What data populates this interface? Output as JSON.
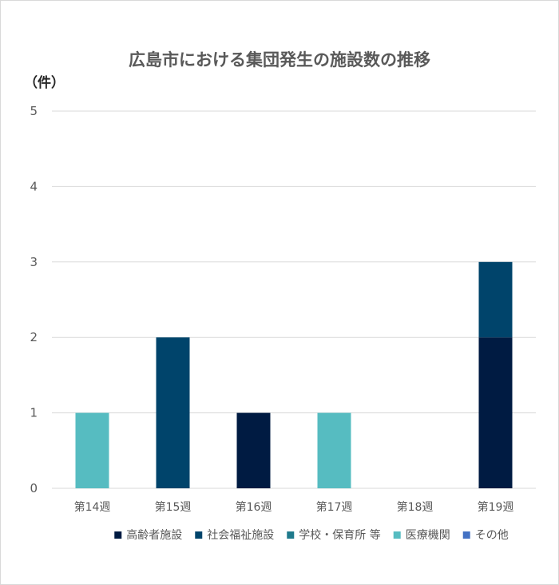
{
  "chart_data": {
    "type": "bar",
    "stacked": true,
    "title": "広島市における集団発生の施設数の推移",
    "unit_label": "（件）",
    "categories": [
      "第14週",
      "第15週",
      "第16週",
      "第17週",
      "第18週",
      "第19週"
    ],
    "ylim": [
      0,
      5
    ],
    "yticks": [
      0,
      1,
      2,
      3,
      4,
      5
    ],
    "grid": true,
    "legend_position": "bottom",
    "series": [
      {
        "name": "高齢者施設",
        "color": "#001b42",
        "values": [
          0,
          0,
          1,
          0,
          0,
          2
        ]
      },
      {
        "name": "社会福祉施設",
        "color": "#00446b",
        "values": [
          0,
          2,
          0,
          0,
          0,
          1
        ]
      },
      {
        "name": "学校・保育所 等",
        "color": "#1f7a8c",
        "values": [
          0,
          0,
          0,
          0,
          0,
          0
        ]
      },
      {
        "name": "医療機関",
        "color": "#56bcc1",
        "values": [
          1,
          0,
          0,
          1,
          0,
          0
        ]
      },
      {
        "name": "その他",
        "color": "#4472c4",
        "values": [
          0,
          0,
          0,
          0,
          0,
          0
        ]
      }
    ]
  }
}
